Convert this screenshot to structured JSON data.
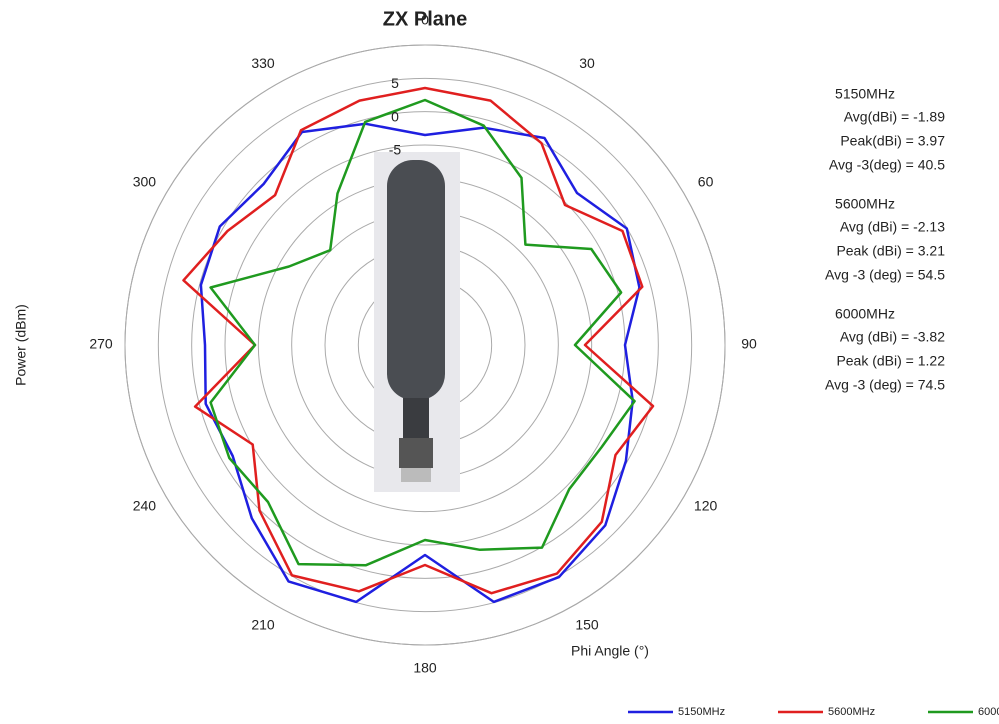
{
  "chart_data": {
    "type": "polar",
    "title": "ZX Plane",
    "xlabel": "Phi Angle (°)",
    "ylabel": "Power (dBm)",
    "theta": [
      0,
      15,
      30,
      45,
      60,
      75,
      90,
      105,
      120,
      135,
      150,
      165,
      180,
      195,
      210,
      225,
      240,
      255,
      270,
      285,
      300,
      315,
      330,
      345
    ],
    "thetaticks": [
      0,
      30,
      60,
      90,
      120,
      150,
      180,
      210,
      240,
      270,
      300,
      330
    ],
    "rlim": [
      -35,
      10
    ],
    "rticks": [
      5,
      0,
      -5
    ],
    "rgrid": [
      10,
      5,
      0,
      -5,
      -10,
      -15,
      -20,
      -25,
      -30
    ],
    "legend": "bottom-right",
    "series": [
      {
        "name": "5150MHz",
        "color": "#1f1fe0",
        "values": [
          -3.5,
          -1.25,
          0.85,
          -2.75,
          -0.05,
          -1.7,
          -5,
          -2.75,
          -0.2,
          3.25,
          5.2,
          4.9,
          -3.5,
          4.9,
          5.95,
          1.75,
          -1.7,
          -0.95,
          -2,
          -0.2,
          0.55,
          -0.8,
          1.9,
          -0.65
        ]
      },
      {
        "name": "5600MHz",
        "color": "#e01f1f",
        "values": [
          3.55,
          2.95,
          -0.05,
          -5.3,
          -0.8,
          -1.25,
          -11,
          0.4,
          -2,
          2.5,
          4.6,
          3.55,
          -2,
          3.25,
          4.9,
          0.1,
          -5.15,
          0.7,
          -9.5,
          2.5,
          -0.8,
          -3.2,
          2.2,
          2.95
        ]
      },
      {
        "name": "6000MHz",
        "color": "#1f9a1f",
        "values": [
          1.75,
          -0.95,
          -6.05,
          -13.7,
          -6.2,
          -4.55,
          -12.5,
          -2.45,
          -4.4,
          -4.4,
          0.1,
          -3.2,
          -5.75,
          -0.8,
          2.95,
          -1.7,
          -1.1,
          -1.7,
          -9.5,
          -1.7,
          -11.45,
          -14.9,
          -8.75,
          -0.35
        ]
      }
    ],
    "annotations": [
      {
        "name": "5150MHz",
        "lines": [
          "Avg(dBi) = -1.89",
          "Peak(dBi) = 3.97",
          "Avg -3(deg) = 40.5"
        ]
      },
      {
        "name": "5600MHz",
        "lines": [
          "Avg (dBi) =  -2.13",
          "Peak (dBi) =  3.21",
          "Avg -3 (deg) =  54.5"
        ]
      },
      {
        "name": "6000MHz",
        "lines": [
          "Avg (dBi) =  -3.82",
          "Peak (dBi) = 1.22",
          "Avg -3 (deg) = 74.5"
        ]
      }
    ]
  }
}
